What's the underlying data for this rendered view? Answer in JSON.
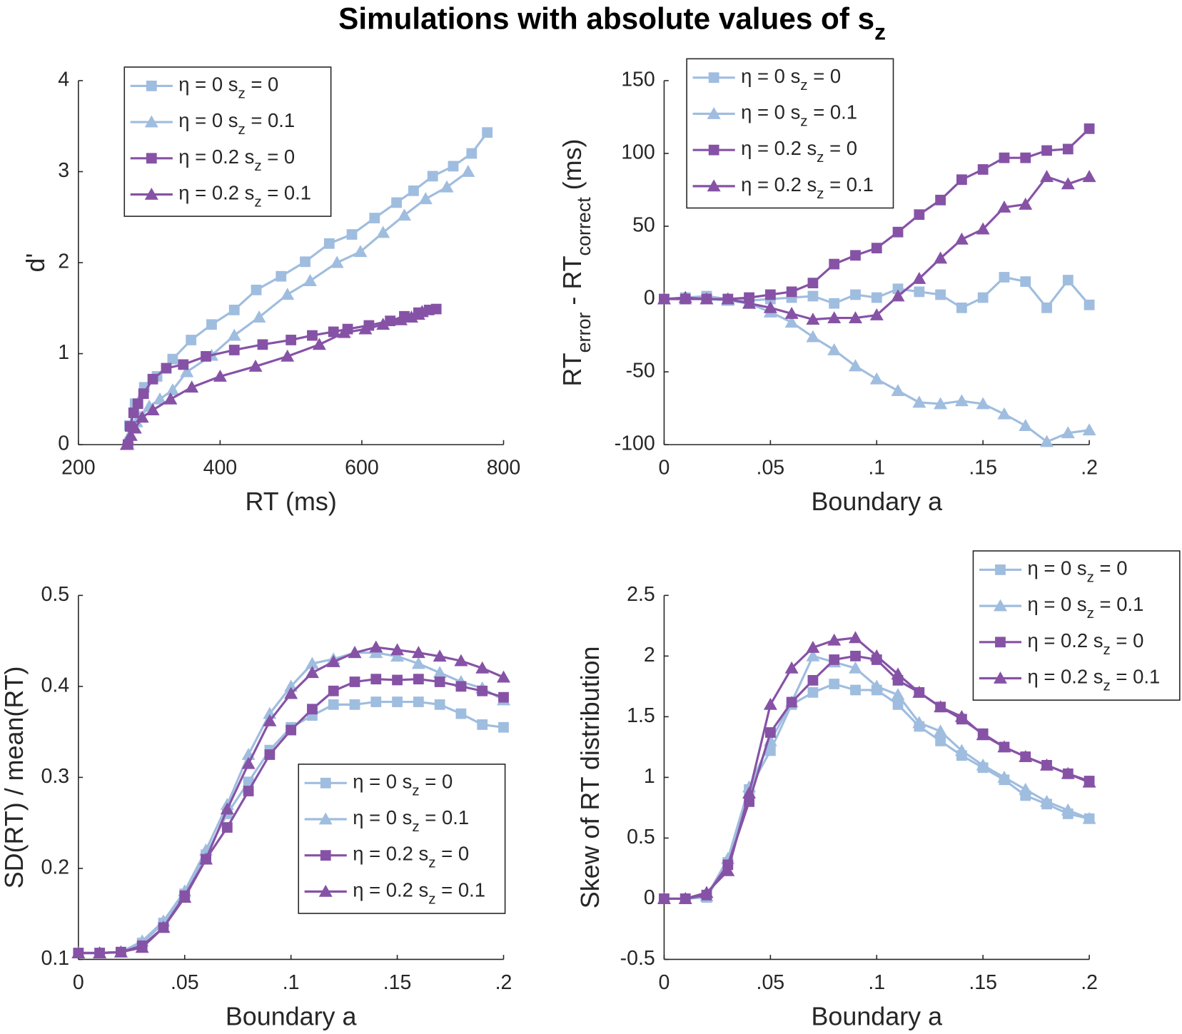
{
  "title": "Simulations with absolute values of sz",
  "chart_data": [
    {
      "type": "line",
      "xlabel": "RT (ms)",
      "ylabel": "d'",
      "xlim": [
        200,
        800
      ],
      "xticks": [
        200,
        400,
        600,
        800
      ],
      "ylim": [
        0,
        4
      ],
      "yticks": [
        0,
        1,
        2,
        3,
        4
      ],
      "legend": "upper left",
      "series": [
        {
          "name": "η = 0 sz = 0",
          "color": "#9fbddf",
          "marker": "square",
          "x": [
            270,
            272,
            280,
            293,
            311,
            333,
            359,
            388,
            420,
            451,
            486,
            520,
            554,
            586,
            618,
            649,
            673,
            700,
            729,
            755,
            777
          ],
          "values": [
            0,
            0.21,
            0.45,
            0.63,
            0.75,
            0.94,
            1.15,
            1.32,
            1.48,
            1.7,
            1.85,
            2.01,
            2.21,
            2.31,
            2.49,
            2.66,
            2.79,
            2.95,
            3.06,
            3.2,
            3.43
          ]
        },
        {
          "name": "η = 0 sz = 0.1",
          "color": "#9fbddf",
          "marker": "triangle",
          "x": [
            270,
            272,
            278,
            282,
            287,
            300,
            315,
            333,
            353,
            388,
            420,
            455,
            495,
            527,
            565,
            598,
            630,
            660,
            690,
            720,
            750
          ],
          "values": [
            0,
            0.1,
            0.2,
            0.25,
            0.3,
            0.42,
            0.5,
            0.6,
            0.8,
            0.98,
            1.2,
            1.4,
            1.65,
            1.8,
            2.0,
            2.12,
            2.33,
            2.52,
            2.7,
            2.83,
            3.0
          ]
        },
        {
          "name": "η = 0.2 sz = 0",
          "color": "#8652a6",
          "marker": "square",
          "x": [
            270,
            273,
            278,
            284,
            292,
            305,
            324,
            348,
            380,
            420,
            460,
            500,
            530,
            560,
            580,
            610,
            640,
            660,
            680,
            695,
            705
          ],
          "values": [
            0,
            0.2,
            0.35,
            0.45,
            0.56,
            0.72,
            0.84,
            0.88,
            0.97,
            1.04,
            1.1,
            1.15,
            1.2,
            1.24,
            1.27,
            1.31,
            1.36,
            1.41,
            1.45,
            1.48,
            1.49
          ]
        },
        {
          "name": "η = 0.2 sz = 0.1",
          "color": "#8652a6",
          "marker": "triangle",
          "x": [
            268,
            270,
            274,
            280,
            290,
            305,
            330,
            360,
            400,
            450,
            495,
            540,
            575,
            605,
            630,
            655,
            670,
            680,
            685
          ],
          "values": [
            0,
            0.05,
            0.1,
            0.18,
            0.3,
            0.38,
            0.5,
            0.63,
            0.75,
            0.86,
            0.97,
            1.1,
            1.23,
            1.27,
            1.32,
            1.37,
            1.4,
            1.43,
            1.46
          ]
        }
      ]
    },
    {
      "type": "line",
      "xlabel": "Boundary a",
      "ylabel": "RTerror - RTcorrect (ms)",
      "xlim": [
        0,
        0.2
      ],
      "xticks": [
        0,
        {
          "value": 0.05,
          "label": ".05"
        },
        {
          "value": 0.1,
          "label": ".1"
        },
        {
          "value": 0.15,
          "label": ".15"
        },
        {
          "value": 0.2,
          "label": ".2"
        }
      ],
      "ylim": [
        -100,
        150
      ],
      "yticks": [
        -100,
        -50,
        0,
        50,
        100,
        150
      ],
      "legend": "upper left",
      "x": [
        0,
        0.01,
        0.02,
        0.03,
        0.04,
        0.05,
        0.06,
        0.07,
        0.08,
        0.09,
        0.1,
        0.11,
        0.12,
        0.13,
        0.14,
        0.15,
        0.16,
        0.17,
        0.18,
        0.19,
        0.2
      ],
      "series": [
        {
          "name": "η = 0 sz = 0",
          "color": "#9fbddf",
          "marker": "square",
          "values": [
            0,
            1,
            2,
            0,
            -1,
            0,
            1,
            2,
            -3,
            3,
            1,
            7,
            5,
            3,
            -6,
            1,
            15,
            12,
            -6,
            13,
            -4
          ]
        },
        {
          "name": "η = 0 sz = 0.1",
          "color": "#9fbddf",
          "marker": "triangle",
          "values": [
            0,
            0,
            0,
            -1,
            -3,
            -9,
            -16,
            -26,
            -35,
            -46,
            -55,
            -63,
            -71,
            -72,
            -70,
            -72,
            -79,
            -87,
            -98,
            -92,
            -90
          ]
        },
        {
          "name": "η = 0.2 sz = 0",
          "color": "#8652a6",
          "marker": "square",
          "values": [
            0,
            0,
            0,
            0,
            1,
            3,
            5,
            11,
            24,
            30,
            35,
            46,
            58,
            68,
            82,
            89,
            97,
            97,
            102,
            103,
            117
          ]
        },
        {
          "name": "η = 0.2 sz = 0.1",
          "color": "#8652a6",
          "marker": "triangle",
          "values": [
            0,
            1,
            0,
            0,
            -3,
            -6,
            -10,
            -14,
            -13,
            -13,
            -11,
            2,
            14,
            28,
            41,
            48,
            63,
            65,
            84,
            79,
            84
          ]
        }
      ]
    },
    {
      "type": "line",
      "xlabel": "Boundary a",
      "ylabel": "SD(RT) / mean(RT)",
      "xlim": [
        0,
        0.2
      ],
      "xticks": [
        0,
        {
          "value": 0.05,
          "label": ".05"
        },
        {
          "value": 0.1,
          "label": ".1"
        },
        {
          "value": 0.15,
          "label": ".15"
        },
        {
          "value": 0.2,
          "label": ".2"
        }
      ],
      "ylim": [
        0.1,
        0.5
      ],
      "yticks": [
        0.1,
        0.2,
        0.3,
        0.4,
        0.5
      ],
      "legend": "lower right",
      "x": [
        0,
        0.01,
        0.02,
        0.03,
        0.04,
        0.05,
        0.06,
        0.07,
        0.08,
        0.09,
        0.1,
        0.11,
        0.12,
        0.13,
        0.14,
        0.15,
        0.16,
        0.17,
        0.18,
        0.19,
        0.2
      ],
      "series": [
        {
          "name": "η = 0 sz = 0",
          "color": "#9fbddf",
          "marker": "square",
          "values": [
            0.107,
            0.107,
            0.108,
            0.118,
            0.14,
            0.172,
            0.215,
            0.26,
            0.295,
            0.33,
            0.355,
            0.368,
            0.38,
            0.38,
            0.383,
            0.383,
            0.383,
            0.38,
            0.37,
            0.358,
            0.355
          ]
        },
        {
          "name": "η = 0 sz = 0.1",
          "color": "#9fbddf",
          "marker": "triangle",
          "values": [
            0.107,
            0.107,
            0.108,
            0.12,
            0.142,
            0.175,
            0.22,
            0.27,
            0.325,
            0.37,
            0.4,
            0.425,
            0.43,
            0.437,
            0.437,
            0.433,
            0.425,
            0.415,
            0.405,
            0.398,
            0.385
          ]
        },
        {
          "name": "η = 0.2 sz = 0",
          "color": "#8652a6",
          "marker": "square",
          "values": [
            0.107,
            0.107,
            0.108,
            0.115,
            0.135,
            0.17,
            0.21,
            0.245,
            0.285,
            0.325,
            0.352,
            0.375,
            0.395,
            0.405,
            0.408,
            0.407,
            0.408,
            0.405,
            0.4,
            0.395,
            0.388
          ]
        },
        {
          "name": "η = 0.2 sz = 0.1",
          "color": "#8652a6",
          "marker": "triangle",
          "values": [
            0.107,
            0.107,
            0.108,
            0.113,
            0.135,
            0.168,
            0.21,
            0.265,
            0.315,
            0.362,
            0.392,
            0.415,
            0.427,
            0.437,
            0.443,
            0.44,
            0.437,
            0.433,
            0.428,
            0.42,
            0.41
          ]
        }
      ]
    },
    {
      "type": "line",
      "xlabel": "Boundary a",
      "ylabel": "Skew of RT distribution",
      "xlim": [
        0,
        0.2
      ],
      "xticks": [
        0,
        {
          "value": 0.05,
          "label": ".05"
        },
        {
          "value": 0.1,
          "label": ".1"
        },
        {
          "value": 0.15,
          "label": ".15"
        },
        {
          "value": 0.2,
          "label": ".2"
        }
      ],
      "ylim": [
        -0.5,
        2.5
      ],
      "yticks": [
        -0.5,
        0,
        0.5,
        1,
        1.5,
        2,
        2.5
      ],
      "legend": "upper right",
      "x": [
        0,
        0.01,
        0.02,
        0.03,
        0.04,
        0.05,
        0.06,
        0.07,
        0.08,
        0.09,
        0.1,
        0.11,
        0.12,
        0.13,
        0.14,
        0.15,
        0.16,
        0.17,
        0.18,
        0.19,
        0.2
      ],
      "series": [
        {
          "name": "η = 0 sz = 0",
          "color": "#9fbddf",
          "marker": "square",
          "values": [
            0,
            0,
            0.01,
            0.3,
            0.9,
            1.22,
            1.6,
            1.7,
            1.77,
            1.72,
            1.72,
            1.6,
            1.42,
            1.3,
            1.18,
            1.08,
            0.98,
            0.85,
            0.78,
            0.7,
            0.66
          ]
        },
        {
          "name": "η = 0 sz = 0.1",
          "color": "#9fbddf",
          "marker": "triangle",
          "values": [
            0,
            0,
            0.02,
            0.33,
            0.92,
            1.3,
            1.62,
            2.0,
            1.95,
            1.9,
            1.75,
            1.68,
            1.45,
            1.38,
            1.22,
            1.1,
            1.0,
            0.9,
            0.8,
            0.73,
            0.66
          ]
        },
        {
          "name": "η = 0.2 sz = 0",
          "color": "#8652a6",
          "marker": "square",
          "values": [
            0,
            0,
            0.03,
            0.28,
            0.8,
            1.37,
            1.62,
            1.8,
            1.97,
            2.0,
            1.97,
            1.8,
            1.7,
            1.58,
            1.48,
            1.36,
            1.25,
            1.17,
            1.1,
            1.03,
            0.97
          ]
        },
        {
          "name": "η = 0.2 sz = 0.1",
          "color": "#8652a6",
          "marker": "triangle",
          "values": [
            0,
            0,
            0.05,
            0.23,
            0.87,
            1.6,
            1.9,
            2.07,
            2.13,
            2.15,
            2.0,
            1.85,
            1.7,
            1.58,
            1.5,
            1.35,
            1.25,
            1.17,
            1.1,
            1.03,
            0.96
          ]
        }
      ]
    }
  ]
}
